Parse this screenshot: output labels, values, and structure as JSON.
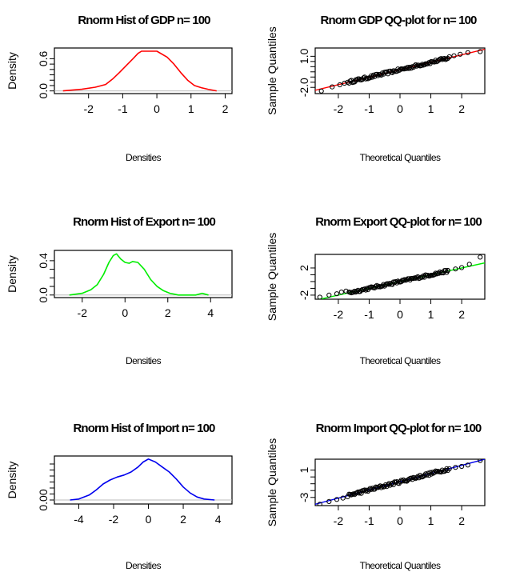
{
  "chart_data": [
    {
      "type": "line",
      "title": "Rnorm Hist of GDP n= 100",
      "xlabel": "Densities",
      "ylabel": "Density",
      "xlim": [
        -3.0,
        2.2
      ],
      "ylim": [
        -0.05,
        0.8
      ],
      "xticks": [
        -2,
        -1,
        0,
        1,
        2
      ],
      "xtick_labels": [
        "-2",
        "-1",
        "0",
        "1",
        "2"
      ],
      "yticks": [
        0.0,
        0.6
      ],
      "ytick_labels": [
        "0.0",
        "0.6"
      ],
      "yminor_ticks": [
        0.1,
        0.2,
        0.3,
        0.4,
        0.5
      ],
      "color": "#ff0000",
      "baseline_color": "#bbbbbb",
      "x": [
        -2.75,
        -2.2,
        -1.8,
        -1.5,
        -1.3,
        -1.1,
        -0.9,
        -0.7,
        -0.55,
        -0.45,
        -0.3,
        0.0,
        0.3,
        0.5,
        0.7,
        0.9,
        1.1,
        1.3,
        1.5,
        1.75
      ],
      "values": [
        0.0,
        0.03,
        0.07,
        0.12,
        0.22,
        0.34,
        0.47,
        0.6,
        0.7,
        0.74,
        0.74,
        0.74,
        0.63,
        0.5,
        0.34,
        0.2,
        0.1,
        0.06,
        0.03,
        0.0
      ]
    },
    {
      "type": "scatter",
      "title": "Rnorm GDP QQ-plot for n= 100",
      "xlabel": "Theoretical Quantiles",
      "ylabel": "Sample Quantiles",
      "xlim": [
        -2.75,
        2.75
      ],
      "ylim": [
        -2.6,
        1.8
      ],
      "xticks": [
        -2,
        -1,
        0,
        1,
        2
      ],
      "xtick_labels": [
        "-2",
        "-1",
        "0",
        "1",
        "2"
      ],
      "yticks": [
        -2.0,
        1.0
      ],
      "ytick_labels": [
        "-2.0",
        "1.0"
      ],
      "yminor_ticks": [
        -1.5,
        -1.0,
        -0.5,
        0.0,
        0.5
      ],
      "line_color": "#ff0000",
      "point_color": "#000000",
      "line_intercept": -0.3,
      "line_slope": 0.72,
      "outliers": {
        "x": [
          -2.55,
          -2.2,
          -1.95,
          -1.8,
          -1.7,
          1.6,
          1.75,
          1.95,
          2.2,
          2.6
        ],
        "y": [
          -2.35,
          -1.95,
          -1.75,
          -1.6,
          -1.5,
          0.95,
          1.05,
          1.2,
          1.35,
          1.45
        ]
      },
      "n": 100
    },
    {
      "type": "line",
      "title": "Rnorm Hist of Export n= 100",
      "xlabel": "Densities",
      "ylabel": "Density",
      "xlim": [
        -3.3,
        5.0
      ],
      "ylim": [
        -0.03,
        0.52
      ],
      "xticks": [
        -2,
        0,
        2,
        4
      ],
      "xtick_labels": [
        "-2",
        "0",
        "2",
        "4"
      ],
      "yticks": [
        0.0,
        0.4
      ],
      "ytick_labels": [
        "0.0",
        "0.4"
      ],
      "yminor_ticks": [
        0.1,
        0.2,
        0.3
      ],
      "color": "#00ee00",
      "baseline_color": "#bbbbbb",
      "x": [
        -2.6,
        -2.0,
        -1.6,
        -1.3,
        -1.0,
        -0.75,
        -0.55,
        -0.4,
        -0.2,
        0.0,
        0.2,
        0.35,
        0.6,
        0.9,
        1.2,
        1.5,
        1.8,
        2.1,
        2.3,
        2.5,
        3.3,
        3.6,
        3.9
      ],
      "values": [
        0.0,
        0.02,
        0.06,
        0.12,
        0.24,
        0.38,
        0.46,
        0.48,
        0.42,
        0.38,
        0.37,
        0.39,
        0.38,
        0.3,
        0.18,
        0.1,
        0.05,
        0.02,
        0.01,
        0.0,
        0.0,
        0.02,
        0.0
      ]
    },
    {
      "type": "scatter",
      "title": "Rnorm Export QQ-plot for n= 100",
      "xlabel": "Theoretical Quantiles",
      "ylabel": "Sample Quantiles",
      "xlim": [
        -2.75,
        2.75
      ],
      "ylim": [
        -2.6,
        4.0
      ],
      "xticks": [
        -2,
        -1,
        0,
        1,
        2
      ],
      "xtick_labels": [
        "-2",
        "-1",
        "0",
        "1",
        "2"
      ],
      "yticks": [
        -2,
        2
      ],
      "ytick_labels": [
        "-2",
        "2"
      ],
      "yminor_ticks": [
        -1,
        0,
        1
      ],
      "line_color": "#00ee00",
      "point_color": "#000000",
      "line_intercept": 0.0,
      "line_slope": 1.0,
      "outliers": {
        "x": [
          -2.6,
          -2.3,
          -2.05,
          -1.9,
          -1.75,
          1.55,
          1.8,
          2.0,
          2.25,
          2.6
        ],
        "y": [
          -2.3,
          -2.0,
          -1.8,
          -1.55,
          -1.4,
          1.6,
          1.85,
          2.05,
          2.55,
          3.6
        ]
      },
      "n": 100
    },
    {
      "type": "line",
      "title": "Rnorm Hist of Import n= 100",
      "xlabel": "Densities",
      "ylabel": "Density",
      "xlim": [
        -5.4,
        4.8
      ],
      "ylim": [
        -0.02,
        0.22
      ],
      "xticks": [
        -4,
        -2,
        0,
        2,
        4
      ],
      "xtick_labels": [
        "-4",
        "-2",
        "0",
        "2",
        "4"
      ],
      "yticks": [
        0.0
      ],
      "ytick_labels": [
        "0.00"
      ],
      "yminor_ticks": [
        0.03,
        0.06,
        0.09,
        0.12,
        0.15,
        0.18
      ],
      "color": "#0000ee",
      "baseline_color": "#bbbbbb",
      "x": [
        -4.5,
        -4.0,
        -3.4,
        -3.0,
        -2.6,
        -2.2,
        -1.8,
        -1.4,
        -1.0,
        -0.6,
        -0.3,
        0.0,
        0.4,
        0.8,
        1.2,
        1.6,
        2.0,
        2.4,
        2.8,
        3.2,
        3.8
      ],
      "values": [
        0.0,
        0.005,
        0.025,
        0.05,
        0.08,
        0.1,
        0.115,
        0.125,
        0.14,
        0.165,
        0.19,
        0.205,
        0.19,
        0.165,
        0.14,
        0.105,
        0.065,
        0.035,
        0.015,
        0.005,
        0.0
      ]
    },
    {
      "type": "scatter",
      "title": "Rnorm Import QQ-plot for n= 100",
      "xlabel": "Theoretical Quantiles",
      "ylabel": "Sample Quantiles",
      "xlim": [
        -2.75,
        2.75
      ],
      "ylim": [
        -4.2,
        2.6
      ],
      "xticks": [
        -2,
        -1,
        0,
        1,
        2
      ],
      "xtick_labels": [
        "-2",
        "-1",
        "0",
        "1",
        "2"
      ],
      "yticks": [
        1,
        -3
      ],
      "ytick_labels": [
        "1",
        "-3"
      ],
      "yminor_ticks": [
        -2,
        -1,
        0
      ],
      "line_color": "#0000ee",
      "point_color": "#000000",
      "line_intercept": -0.7,
      "line_slope": 1.2,
      "outliers": {
        "x": [
          -2.6,
          -2.3,
          -2.05,
          -1.85,
          -1.7,
          1.6,
          1.8,
          2.0,
          2.2,
          2.6
        ],
        "y": [
          -4.0,
          -3.6,
          -3.3,
          -3.1,
          -2.9,
          1.2,
          1.4,
          1.55,
          1.75,
          2.4
        ]
      },
      "n": 100
    }
  ]
}
